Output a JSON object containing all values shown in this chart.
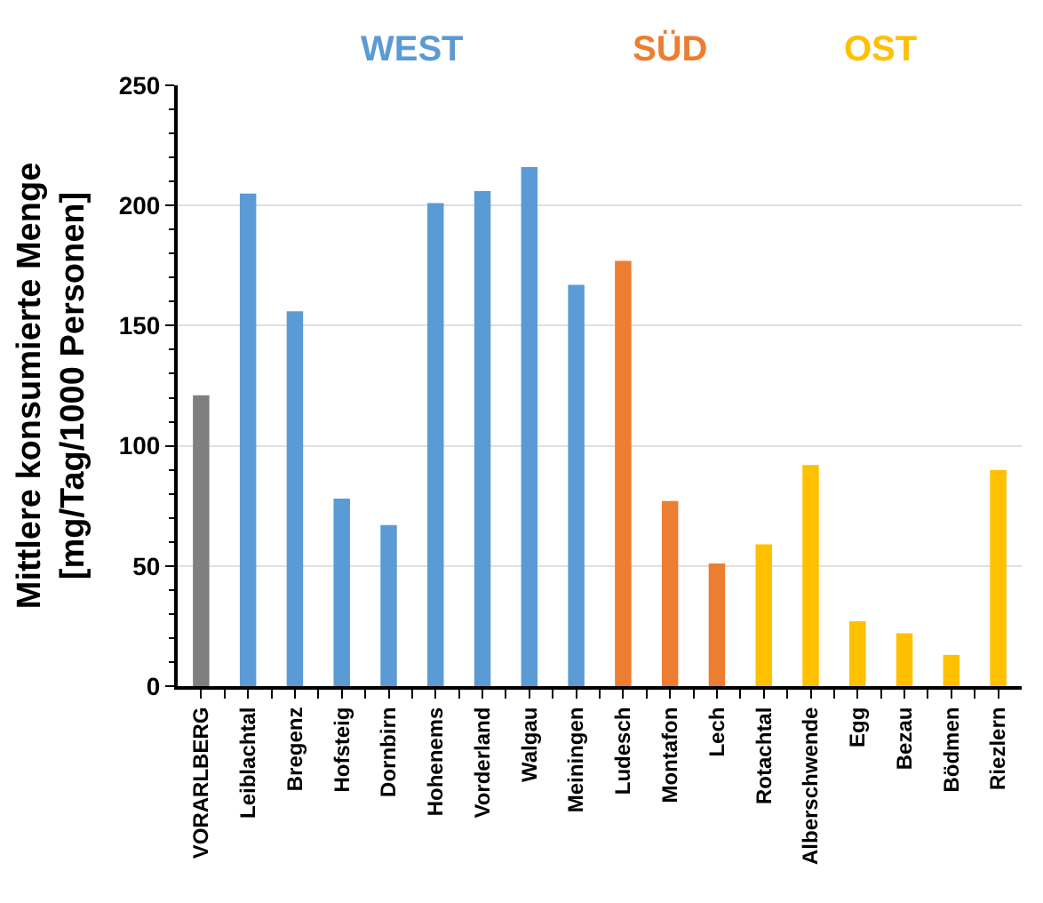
{
  "chart_data": {
    "type": "bar",
    "ylabel": "Mittlere konsumierte Menge\n[mg/Tag/1000 Personen]",
    "categories": [
      "VORARLBERG",
      "Leiblachtal",
      "Bregenz",
      "Hofsteig",
      "Dornbirn",
      "Hohenems",
      "Vorderland",
      "Walgau",
      "Meiningen",
      "Ludesch",
      "Montafon",
      "Lech",
      "Rotachtal",
      "Alberschwende",
      "Egg",
      "Bezau",
      "Bödmen",
      "Riezlern"
    ],
    "series": [
      {
        "color": "#7f7f7f",
        "values": [
          121,
          null,
          null,
          null,
          null,
          null,
          null,
          null,
          null,
          null,
          null,
          null,
          null,
          null,
          null,
          null,
          null,
          null
        ]
      },
      {
        "name": "WEST",
        "color": "#5b9bd5",
        "values": [
          null,
          205,
          156,
          78,
          67,
          201,
          206,
          216,
          167,
          null,
          null,
          null,
          null,
          null,
          null,
          null,
          null,
          null
        ]
      },
      {
        "name": "SÜD",
        "color": "#ed7d31",
        "values": [
          null,
          null,
          null,
          null,
          null,
          null,
          null,
          null,
          null,
          177,
          77,
          51,
          null,
          null,
          null,
          null,
          null,
          null
        ]
      },
      {
        "name": "OST",
        "color": "#ffc000",
        "values": [
          null,
          null,
          null,
          null,
          null,
          null,
          null,
          null,
          null,
          null,
          null,
          null,
          59,
          92,
          27,
          22,
          13,
          90
        ]
      }
    ],
    "ylim": [
      0,
      250
    ],
    "yticks": [
      0,
      {
        "value": 10,
        "label": null
      },
      {
        "value": 20,
        "label": null
      },
      {
        "value": 30,
        "label": null
      },
      {
        "value": 40,
        "label": null
      },
      50,
      {
        "value": 60,
        "label": null
      },
      {
        "value": 70,
        "label": null
      },
      {
        "value": 80,
        "label": null
      },
      {
        "value": 90,
        "label": null
      },
      100,
      {
        "value": 110,
        "label": null
      },
      {
        "value": 120,
        "label": null
      },
      {
        "value": 130,
        "label": null
      },
      {
        "value": 140,
        "label": null
      },
      150,
      {
        "value": 160,
        "label": null
      },
      {
        "value": 170,
        "label": null
      },
      {
        "value": 180,
        "label": null
      },
      {
        "value": 190,
        "label": null
      },
      200,
      {
        "value": 210,
        "label": null
      },
      {
        "value": 220,
        "label": null
      },
      {
        "value": 230,
        "label": null
      },
      {
        "value": 240,
        "label": null
      },
      250
    ],
    "grid": "y",
    "legend": "top"
  }
}
